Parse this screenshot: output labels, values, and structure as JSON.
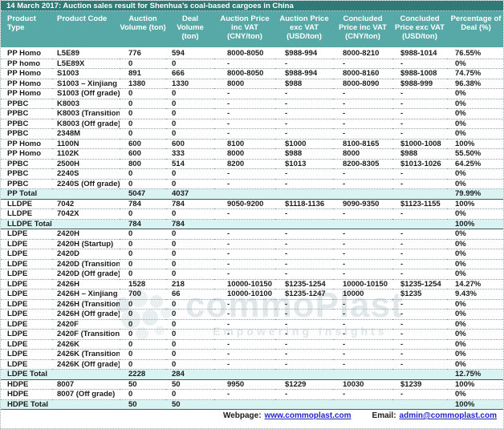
{
  "title": "14 March 2017: Auction sales result for Shenhua’s coal-based cargoes in China",
  "table": {
    "columns": [
      "Product Type",
      "Product Code",
      "Auction Volume (ton)",
      "Deal Volume (ton)",
      "Auction Price inc VAT (CNY/ton)",
      "Auction Price exc VAT (USD/ton)",
      "Concluded Price inc VAT (CNY/ton)",
      "Concluded Price exc VAT (USD/ton)",
      "Percentage of Deal (%)"
    ],
    "column_keys": [
      "product-type",
      "product-code",
      "auction-volume",
      "deal-volume",
      "auction-price-inc-vat",
      "auction-price-exc-vat",
      "concluded-price-inc-vat",
      "concluded-price-exc-vat",
      "percentage-of-deal"
    ],
    "rows": [
      {
        "type": "data",
        "cells": [
          "PP Homo",
          "L5E89",
          "776",
          "594",
          "8000-8050",
          "$988-994",
          "8000-8210",
          "$988-1014",
          "76.55%"
        ]
      },
      {
        "type": "data",
        "cells": [
          "PP homo",
          "L5E89X",
          "0",
          "0",
          "-",
          "-",
          "-",
          "-",
          "0%"
        ]
      },
      {
        "type": "data",
        "cells": [
          "PP Homo",
          "S1003",
          "891",
          "666",
          "8000-8050",
          "$988-994",
          "8000-8160",
          "$988-1008",
          "74.75%"
        ]
      },
      {
        "type": "data",
        "cells": [
          "PP Homo",
          "S1003 – Xinjiang",
          "1380",
          "1330",
          "8000",
          "$988",
          "8000-8090",
          "$988-999",
          "96.38%"
        ]
      },
      {
        "type": "data",
        "cells": [
          "PP Homo",
          "S1003 (Off grade)",
          "0",
          "0",
          "-",
          "-",
          "-",
          "-",
          "0%"
        ]
      },
      {
        "type": "data",
        "cells": [
          "PPBC",
          "K8003",
          "0",
          "0",
          "-",
          "-",
          "-",
          "-",
          "0%"
        ]
      },
      {
        "type": "data",
        "cells": [
          "PPBC",
          "K8003 (Transition)",
          "0",
          "0",
          "-",
          "-",
          "-",
          "-",
          "0%"
        ]
      },
      {
        "type": "data",
        "cells": [
          "PPBC",
          "K8003 (Off grade)",
          "0",
          "0",
          "-",
          "-",
          "-",
          "-",
          "0%"
        ]
      },
      {
        "type": "data",
        "cells": [
          "PPBC",
          "2348M",
          "0",
          "0",
          "-",
          "-",
          "-",
          "-",
          "0%"
        ]
      },
      {
        "type": "data",
        "cells": [
          "PP Homo",
          "1100N",
          "600",
          "600",
          "8100",
          "$1000",
          "8100-8165",
          "$1000-1008",
          "100%"
        ]
      },
      {
        "type": "data",
        "cells": [
          "PP Homo",
          "1102K",
          "600",
          "333",
          "8000",
          "$988",
          "8000",
          "$988",
          "55.50%"
        ]
      },
      {
        "type": "data",
        "cells": [
          "PPBC",
          "2500H",
          "800",
          "514",
          "8200",
          "$1013",
          "8200-8305",
          "$1013-1026",
          "64.25%"
        ]
      },
      {
        "type": "data",
        "cells": [
          "PPBC",
          "2240S",
          "0",
          "0",
          "-",
          "-",
          "-",
          "-",
          "0%"
        ]
      },
      {
        "type": "data",
        "cells": [
          "PPBC",
          "2240S (Off grade)",
          "0",
          "0",
          "-",
          "-",
          "-",
          "-",
          "0%"
        ]
      },
      {
        "type": "total",
        "cells": [
          "PP Total",
          "",
          "5047",
          "4037",
          "",
          "",
          "",
          "",
          "79.99%"
        ]
      },
      {
        "type": "data",
        "cells": [
          "LLDPE",
          "7042",
          "784",
          "784",
          "9050-9200",
          "$1118-1136",
          "9090-9350",
          "$1123-1155",
          "100%"
        ]
      },
      {
        "type": "data",
        "cells": [
          "LLDPE",
          "7042X",
          "0",
          "0",
          "-",
          "-",
          "-",
          "-",
          "0%"
        ]
      },
      {
        "type": "total",
        "cells": [
          "LLDPE Total",
          "",
          "784",
          "784",
          "",
          "",
          "",
          "",
          "100%"
        ]
      },
      {
        "type": "data",
        "cells": [
          "LDPE",
          "2420H",
          "0",
          "0",
          "-",
          "-",
          "-",
          "-",
          "0%"
        ]
      },
      {
        "type": "data",
        "cells": [
          "LDPE",
          "2420H (Startup)",
          "0",
          "0",
          "-",
          "-",
          "-",
          "-",
          "0%"
        ]
      },
      {
        "type": "data",
        "cells": [
          "LDPE",
          "2420D",
          "0",
          "0",
          "-",
          "-",
          "-",
          "-",
          "0%"
        ]
      },
      {
        "type": "data",
        "cells": [
          "LDPE",
          "2420D (Transition)",
          "0",
          "0",
          "-",
          "-",
          "-",
          "-",
          "0%"
        ]
      },
      {
        "type": "data",
        "cells": [
          "LDPE",
          "2420D (Off grade)",
          "0",
          "0",
          "-",
          "-",
          "-",
          "-",
          "0%"
        ]
      },
      {
        "type": "data",
        "cells": [
          "LDPE",
          "2426H",
          "1528",
          "218",
          "10000-10150",
          "$1235-1254",
          "10000-10150",
          "$1235-1254",
          "14.27%"
        ]
      },
      {
        "type": "data",
        "cells": [
          "LDPE",
          "2426H – Xinjiang",
          "700",
          "66",
          "10000-10100",
          "$1235-1247",
          "10000",
          "$1235",
          "9.43%"
        ]
      },
      {
        "type": "data",
        "cells": [
          "LDPE",
          "2426H (Transition)",
          "0",
          "0",
          "-",
          "-",
          "-",
          "-",
          "0%"
        ]
      },
      {
        "type": "data",
        "cells": [
          "LDPE",
          "2426H (Off grade)",
          "0",
          "0",
          "-",
          "-",
          "-",
          "-",
          "0%"
        ]
      },
      {
        "type": "data",
        "cells": [
          "LDPE",
          "2420F",
          "0",
          "0",
          "-",
          "-",
          "-",
          "-",
          "0%"
        ]
      },
      {
        "type": "data",
        "cells": [
          "LDPE",
          "2420F (Transition)",
          "0",
          "0",
          "-",
          "-",
          "-",
          "-",
          "0%"
        ]
      },
      {
        "type": "data",
        "cells": [
          "LDPE",
          "2426K",
          "0",
          "0",
          "-",
          "-",
          "-",
          "-",
          "0%"
        ]
      },
      {
        "type": "data",
        "cells": [
          "LDPE",
          "2426K (Transition)",
          "0",
          "0",
          "-",
          "-",
          "-",
          "-",
          "0%"
        ]
      },
      {
        "type": "data",
        "cells": [
          "LDPE",
          "2426K (Off grade)",
          "0",
          "0",
          "-",
          "-",
          "-",
          "-",
          "0%"
        ]
      },
      {
        "type": "total",
        "cells": [
          "LDPE Total",
          "",
          "2228",
          "284",
          "",
          "",
          "",
          "",
          "12.75%"
        ]
      },
      {
        "type": "data",
        "cells": [
          "HDPE",
          "8007",
          "50",
          "50",
          "9950",
          "$1229",
          "10030",
          "$1239",
          "100%"
        ]
      },
      {
        "type": "data",
        "cells": [
          "HDPE",
          "8007 (Off grade)",
          "0",
          "0",
          "-",
          "-",
          "-",
          "-",
          "0%"
        ]
      },
      {
        "type": "total",
        "cells": [
          "HDPE Total",
          "",
          "50",
          "50",
          "",
          "",
          "",
          "",
          "100%"
        ]
      }
    ]
  },
  "footer": {
    "webpage_label": "Webpage:",
    "webpage_link": "www.commoplast.com",
    "email_label": "Email:",
    "email_link": "admin@commoplast.com"
  },
  "watermark": {
    "brand": "commoPlast",
    "tagline": "Empowering Insights"
  },
  "colors": {
    "title_bg": "#2e7b78",
    "header_bg": "#56a9a6",
    "total_row_bg": "#d9f3f2",
    "link": "#2323cb",
    "text": "#1b1b1b",
    "row_border": "#8fa6a6"
  }
}
